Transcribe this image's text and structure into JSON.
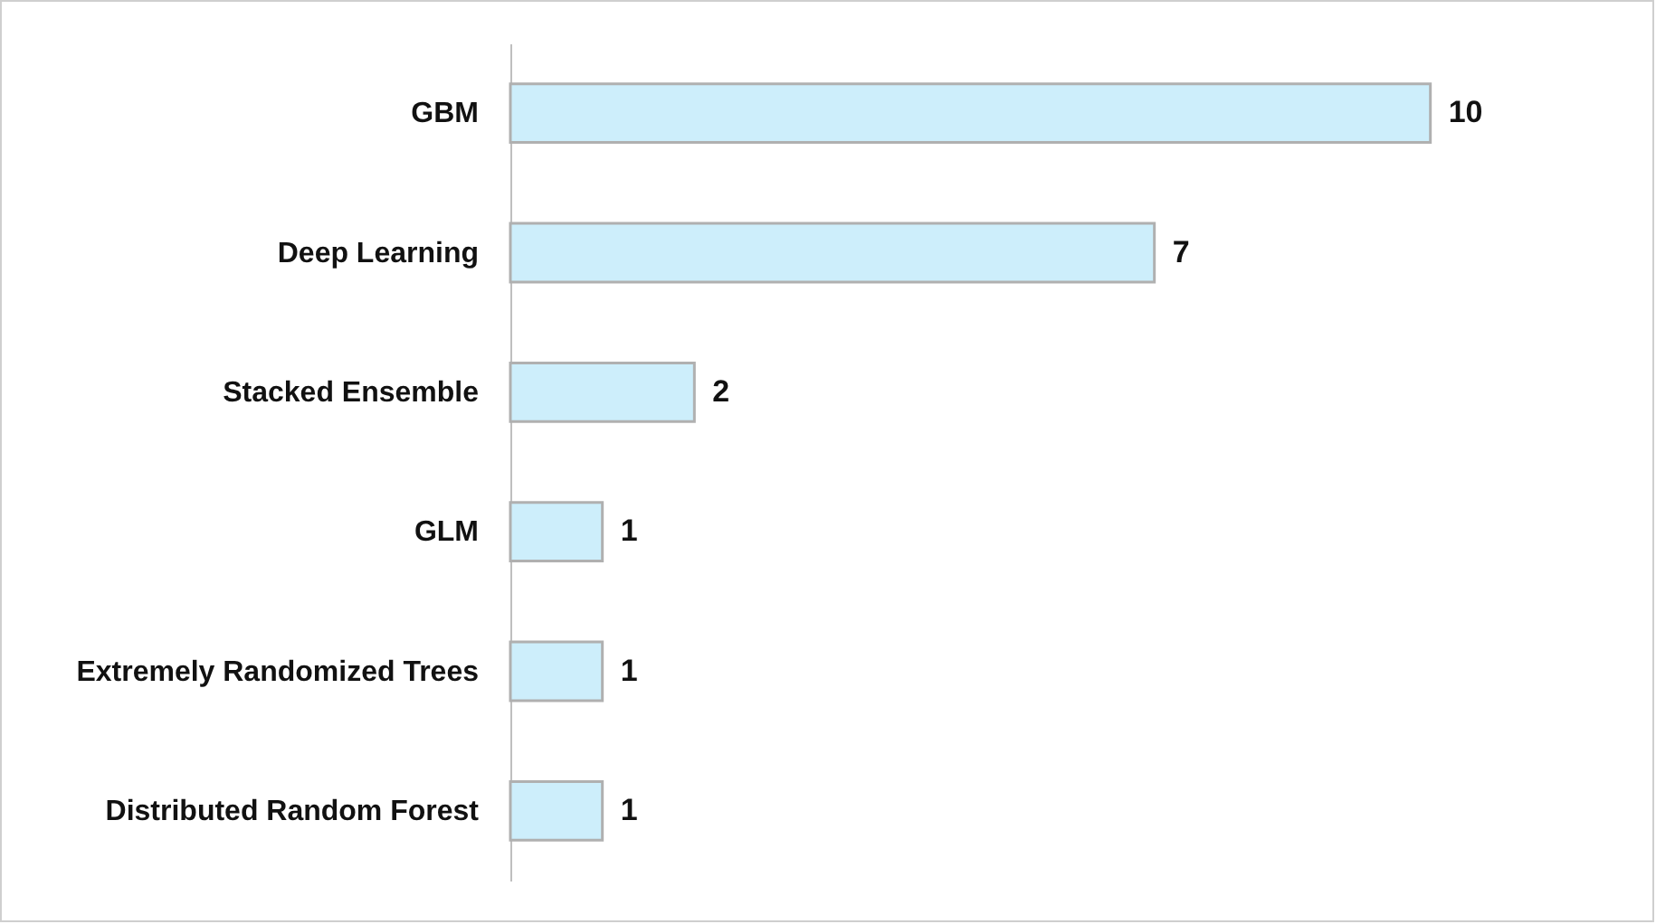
{
  "chart_data": {
    "type": "bar",
    "orientation": "horizontal",
    "categories": [
      "GBM",
      "Deep Learning",
      "Stacked Ensemble",
      "GLM",
      "Extremely Randomized Trees",
      "Distributed Random Forest"
    ],
    "values": [
      10,
      7,
      2,
      1,
      1,
      1
    ],
    "color": "#cdeefb",
    "data_labels": true
  }
}
